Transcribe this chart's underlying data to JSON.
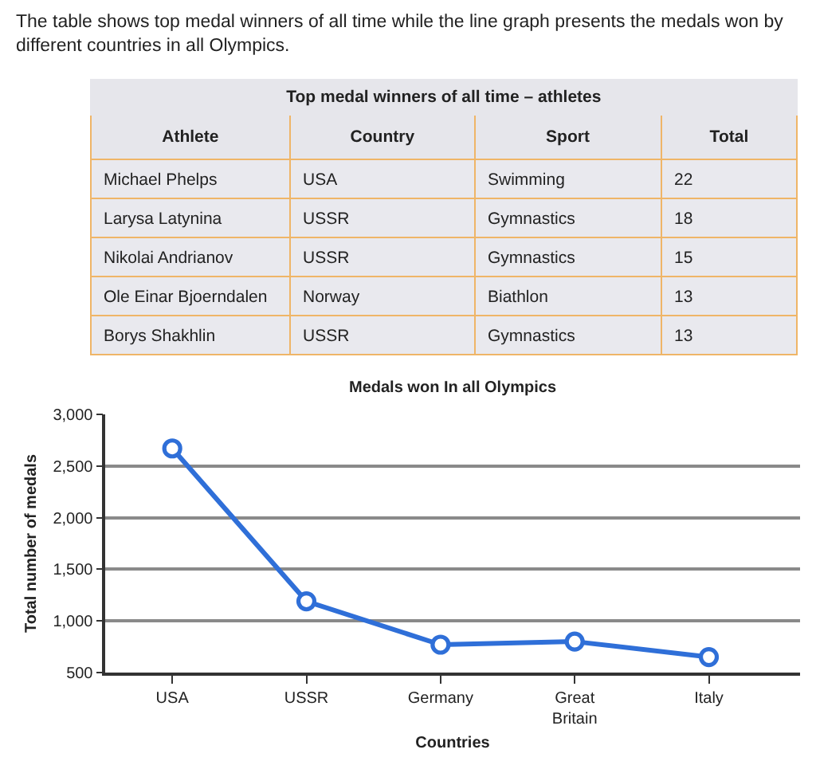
{
  "chart_data": [
    {
      "type": "other",
      "title": "Top medal winners of all time – athletes",
      "categories": [
        "Athlete",
        "Country",
        "Sport",
        "Total"
      ],
      "cell_labels": [
        [
          "Michael Phelps",
          "USA",
          "Swimming",
          "22"
        ],
        [
          "Larysa Latynina",
          "USSR",
          "Gymnastics",
          "18"
        ],
        [
          "Nikolai Andrianov",
          "USSR",
          "Gymnastics",
          "15"
        ],
        [
          "Ole Einar Bjoerndalen",
          "Norway",
          "Biathlon",
          "13"
        ],
        [
          "Borys Shakhlin",
          "USSR",
          "Gymnastics",
          "13"
        ]
      ],
      "annotations": [
        "The table shows top medal winners of all time while the line graph presents the medals won by different countries in all Olympics."
      ]
    },
    {
      "type": "line",
      "title": "Medals won In all Olympics",
      "xlabel": "Countries",
      "ylabel": "Total number of medals",
      "categories": [
        "USA",
        "USSR",
        "Germany",
        "Great Britain",
        "Italy"
      ],
      "series": [
        {
          "color": "#2f6fd8",
          "values": [
            2670,
            1190,
            770,
            800,
            650
          ]
        }
      ],
      "ylim": [
        500,
        3000
      ],
      "yticks": [
        500,
        {
          "value": 1000,
          "label": "1,000"
        },
        {
          "value": 1500,
          "label": "1,500"
        },
        {
          "value": 2000,
          "label": "2,000"
        },
        {
          "value": 2500,
          "label": "2,500"
        },
        {
          "value": 3000,
          "label": "3,000"
        }
      ],
      "grid": "y",
      "marker": "circle",
      "line_style": "solid"
    }
  ]
}
